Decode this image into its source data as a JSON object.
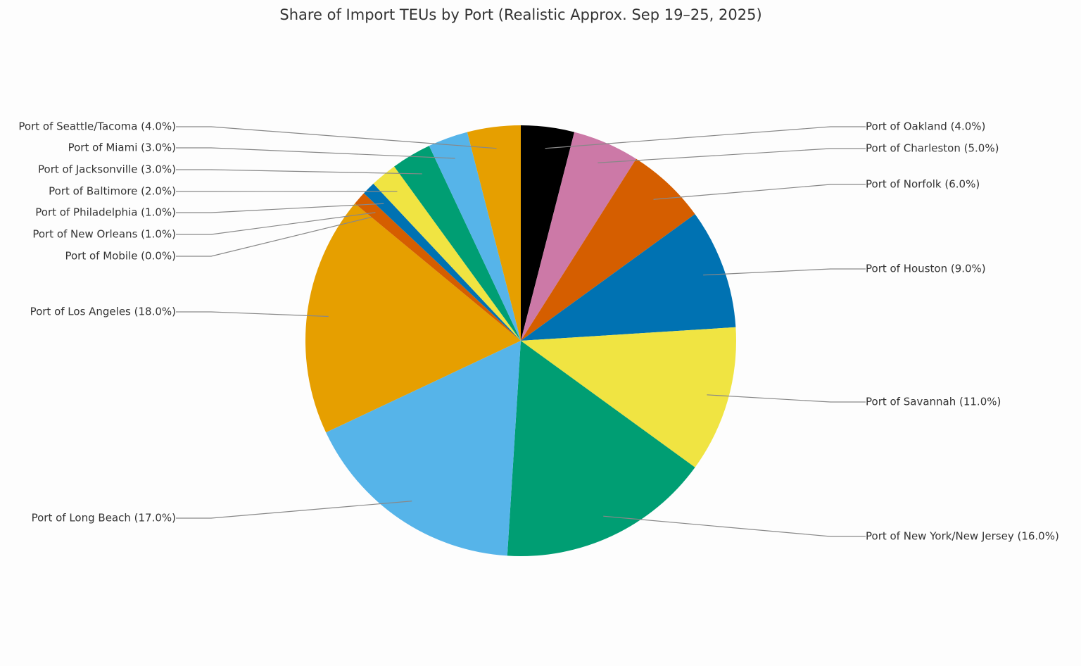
{
  "chart_data": {
    "type": "pie",
    "title": "Share of Import TEUs by Port (Realistic Approx. Sep 19–25, 2025)",
    "categories": [
      "Port of Oakland (4.0%)",
      "Port of Charleston (5.0%)",
      "Port of Norfolk (6.0%)",
      "Port of Houston (9.0%)",
      "Port of Savannah (11.0%)",
      "Port of New York/New Jersey (16.0%)",
      "Port of Long Beach (17.0%)",
      "Port of Los Angeles (18.0%)",
      "Port of Mobile (0.0%)",
      "Port of New Orleans (1.0%)",
      "Port of Philadelphia (1.0%)",
      "Port of Baltimore (2.0%)",
      "Port of Jacksonville (3.0%)",
      "Port of Miami (3.0%)",
      "Port of Seattle/Tacoma (4.0%)"
    ],
    "values": [
      4,
      5,
      6,
      9,
      11,
      16,
      17,
      18,
      0,
      1,
      1,
      2,
      3,
      3,
      4
    ],
    "colors": [
      "#000000",
      "#cc79a7",
      "#d55e00",
      "#0072b2",
      "#f0e442",
      "#009e73",
      "#56b4e9",
      "#e69f00",
      "#cc79a7",
      "#d55e00",
      "#0072b2",
      "#f0e442",
      "#009e73",
      "#56b4e9",
      "#e69f00"
    ]
  }
}
